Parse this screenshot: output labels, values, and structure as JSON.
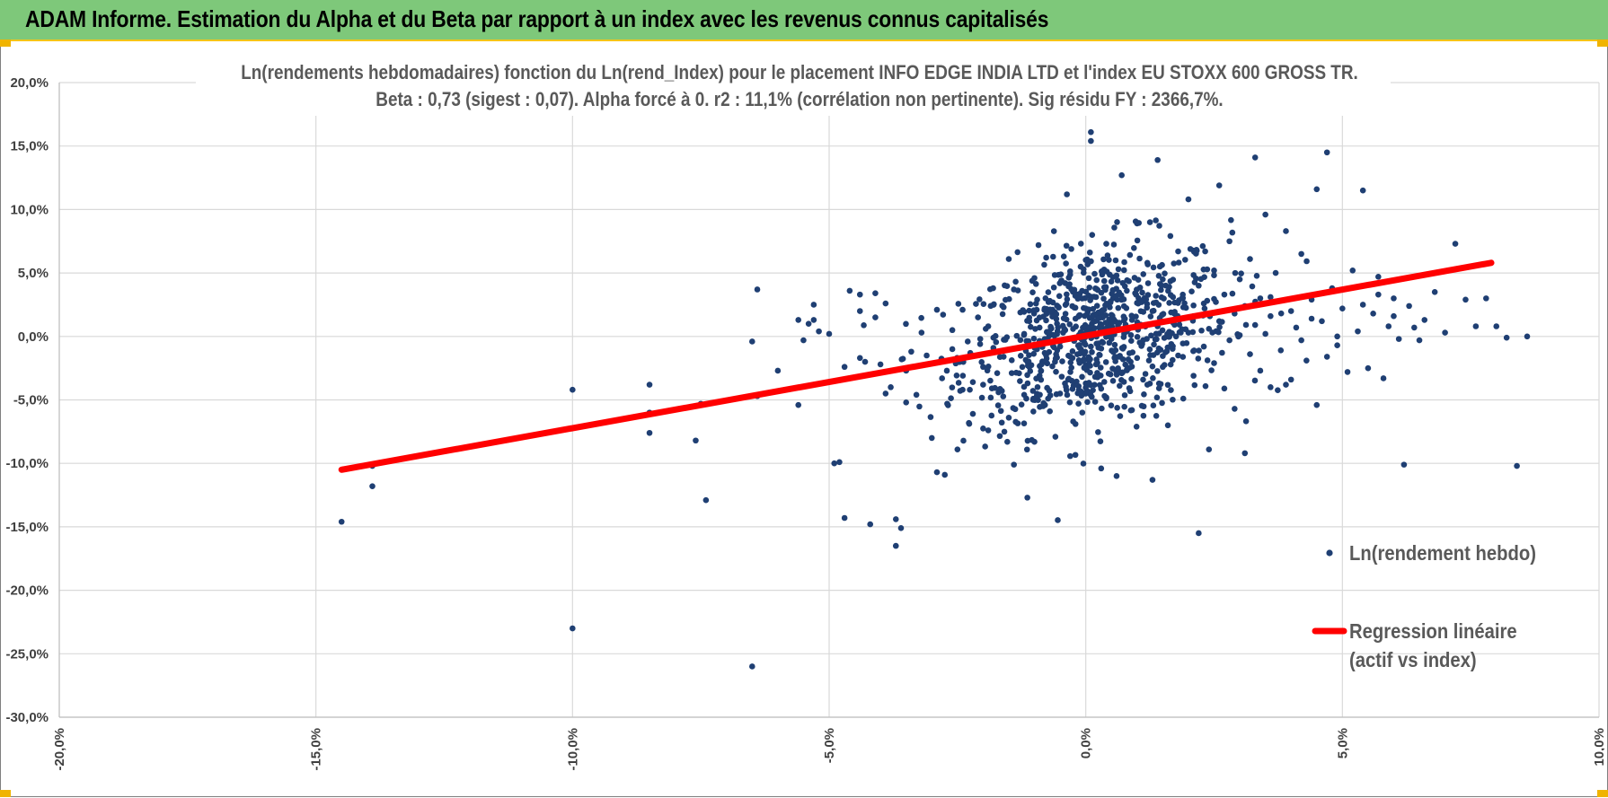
{
  "header": {
    "title": "ADAM Informe. Estimation du Alpha et du Beta par rapport à un index avec les revenus connus capitalisés"
  },
  "colors": {
    "header_bg": "#7ec87a",
    "accent_yellow": "#f0b400",
    "points": "#1f3f73",
    "regression": "#ff0000"
  },
  "chart_data": {
    "type": "scatter",
    "title_line1": "Ln(rendements hebdomadaires) fonction du Ln(rend_Index) pour le placement INFO EDGE INDIA LTD et l'index EU STOXX 600 GROSS TR.",
    "title_line2": "Beta : 0,73 (sigest : 0,07). Alpha forcé à 0. r2 : 11,1% (corrélation non pertinente). Sig résidu FY : 2366,7%.",
    "xlim": [
      -0.2,
      0.1
    ],
    "ylim": [
      -0.3,
      0.2
    ],
    "x_ticks": [
      -0.2,
      -0.15,
      -0.1,
      -0.05,
      0.0,
      0.05,
      0.1
    ],
    "y_ticks": [
      0.2,
      0.15,
      0.1,
      0.05,
      0.0,
      -0.05,
      -0.1,
      -0.15,
      -0.2,
      -0.25,
      -0.3
    ],
    "x_tick_labels": [
      "-20,0%",
      "-15,0%",
      "-10,0%",
      "-5,0%",
      "0,0%",
      "5,0%",
      "10,0%"
    ],
    "y_tick_labels": [
      "20,0%",
      "15,0%",
      "10,0%",
      "5,0%",
      "0,0%",
      "-5,0%",
      "-10,0%",
      "-15,0%",
      "-20,0%",
      "-25,0%",
      "-30,0%"
    ],
    "grid": "on",
    "legend_position": "bottom-right",
    "series": [
      {
        "name": "Ln(rendement hebdo)",
        "kind": "scatter",
        "points": [
          [
            -0.145,
            -0.146
          ],
          [
            -0.139,
            -0.118
          ],
          [
            -0.139,
            -0.102
          ],
          [
            -0.1,
            -0.042
          ],
          [
            -0.1,
            -0.23
          ],
          [
            -0.085,
            -0.038
          ],
          [
            -0.085,
            -0.076
          ],
          [
            -0.085,
            -0.06
          ],
          [
            -0.076,
            -0.082
          ],
          [
            -0.075,
            -0.053
          ],
          [
            -0.074,
            -0.129
          ],
          [
            -0.065,
            -0.004
          ],
          [
            -0.065,
            -0.26
          ],
          [
            -0.064,
            0.037
          ],
          [
            -0.064,
            -0.047
          ],
          [
            -0.06,
            -0.027
          ],
          [
            -0.056,
            -0.054
          ],
          [
            -0.056,
            0.013
          ],
          [
            -0.055,
            -0.003
          ],
          [
            -0.054,
            0.01
          ],
          [
            -0.053,
            0.025
          ],
          [
            -0.053,
            0.013
          ],
          [
            -0.052,
            0.004
          ],
          [
            -0.05,
            0.002
          ],
          [
            -0.049,
            -0.1
          ],
          [
            -0.048,
            -0.099
          ],
          [
            -0.047,
            -0.024
          ],
          [
            -0.047,
            -0.143
          ],
          [
            -0.046,
            0.036
          ],
          [
            -0.044,
            0.033
          ],
          [
            -0.044,
            0.02
          ],
          [
            -0.044,
            -0.017
          ],
          [
            -0.043,
            -0.02
          ],
          [
            -0.042,
            -0.148
          ],
          [
            -0.041,
            0.034
          ],
          [
            -0.041,
            0.015
          ],
          [
            -0.04,
            -0.022
          ],
          [
            -0.039,
            0.026
          ],
          [
            -0.039,
            -0.045
          ],
          [
            -0.038,
            -0.04
          ],
          [
            -0.037,
            -0.144
          ],
          [
            -0.037,
            -0.165
          ],
          [
            -0.036,
            -0.151
          ],
          [
            -0.035,
            -0.027
          ],
          [
            -0.035,
            -0.052
          ],
          [
            -0.034,
            -0.012
          ],
          [
            -0.033,
            -0.046
          ],
          [
            -0.032,
            0.003
          ],
          [
            -0.031,
            -0.015
          ],
          [
            -0.03,
            -0.08
          ],
          [
            -0.029,
            -0.107
          ],
          [
            -0.029,
            0.021
          ],
          [
            -0.028,
            -0.033
          ],
          [
            -0.028,
            -0.019
          ],
          [
            -0.027,
            -0.053
          ],
          [
            -0.026,
            0.005
          ],
          [
            -0.026,
            -0.01
          ],
          [
            -0.025,
            -0.089
          ],
          [
            -0.024,
            -0.042
          ],
          [
            -0.024,
            0.021
          ],
          [
            -0.023,
            -0.004
          ],
          [
            -0.022,
            -0.036
          ],
          [
            -0.022,
            -0.061
          ],
          [
            -0.021,
            0.015
          ],
          [
            -0.02,
            -0.024
          ],
          [
            -0.02,
            -0.038
          ],
          [
            -0.019,
            -0.074
          ],
          [
            -0.019,
            0.008
          ],
          [
            -0.018,
            -0.009
          ],
          [
            -0.018,
            -0.001
          ],
          [
            -0.017,
            -0.044
          ],
          [
            -0.016,
            0.023
          ],
          [
            -0.016,
            -0.016
          ],
          [
            -0.015,
            -0.064
          ],
          [
            -0.015,
            0.061
          ],
          [
            -0.014,
            0.037
          ],
          [
            -0.014,
            -0.101
          ],
          [
            -0.013,
            -0.029
          ],
          [
            -0.013,
            -0.009
          ],
          [
            -0.012,
            0.002
          ],
          [
            -0.012,
            -0.046
          ],
          [
            -0.011,
            0.012
          ],
          [
            -0.011,
            -0.024
          ],
          [
            -0.01,
            -0.083
          ],
          [
            -0.01,
            0.046
          ],
          [
            -0.009,
            -0.031
          ],
          [
            -0.009,
            0.007
          ],
          [
            -0.008,
            -0.013
          ],
          [
            -0.008,
            -0.002
          ],
          [
            -0.007,
            0.028
          ],
          [
            -0.007,
            -0.059
          ],
          [
            -0.006,
            -0.02
          ],
          [
            -0.006,
            0.019
          ],
          [
            -0.005,
            -0.008
          ],
          [
            -0.005,
            -0.045
          ],
          [
            -0.004,
            0.042
          ],
          [
            -0.004,
            0.005
          ],
          [
            -0.003,
            -0.028
          ],
          [
            -0.003,
            -0.016
          ],
          [
            -0.002,
            0.014
          ],
          [
            -0.002,
            -0.069
          ],
          [
            -0.001,
            0.001
          ],
          [
            -0.001,
            0.055
          ],
          [
            0.0,
            -0.037
          ],
          [
            0.0,
            0.022
          ],
          [
            0.001,
            -0.008
          ],
          [
            0.001,
            0.161
          ],
          [
            0.001,
            0.154
          ],
          [
            0.002,
            0.031
          ],
          [
            0.002,
            -0.022
          ],
          [
            0.003,
            0.009
          ],
          [
            0.003,
            -0.104
          ],
          [
            0.004,
            0.073
          ],
          [
            0.004,
            -0.048
          ],
          [
            0.005,
            0.017
          ],
          [
            0.005,
            -0.002
          ],
          [
            0.006,
            -0.11
          ],
          [
            0.006,
            0.048
          ],
          [
            0.007,
            -0.029
          ],
          [
            0.007,
            0.127
          ],
          [
            0.008,
            0.004
          ],
          [
            0.008,
            0.036
          ],
          [
            0.009,
            -0.058
          ],
          [
            0.009,
            0.013
          ],
          [
            0.01,
            -0.017
          ],
          [
            0.01,
            0.089
          ],
          [
            0.011,
            0.028
          ],
          [
            0.011,
            -0.006
          ],
          [
            0.012,
            0.058
          ],
          [
            0.012,
            -0.038
          ],
          [
            0.013,
            0.02
          ],
          [
            0.013,
            -0.113
          ],
          [
            0.014,
            0.008
          ],
          [
            0.014,
            0.139
          ],
          [
            0.015,
            -0.024
          ],
          [
            0.015,
            0.045
          ],
          [
            0.016,
            0.001
          ],
          [
            0.016,
            -0.07
          ],
          [
            0.017,
            0.031
          ],
          [
            0.017,
            0.011
          ],
          [
            0.018,
            -0.015
          ],
          [
            0.018,
            0.067
          ],
          [
            0.019,
            0.023
          ],
          [
            0.019,
            -0.049
          ],
          [
            0.02,
            0.003
          ],
          [
            0.02,
            0.108
          ],
          [
            0.021,
            -0.031
          ],
          [
            0.021,
            0.016
          ],
          [
            0.022,
            -0.155
          ],
          [
            0.022,
            0.04
          ],
          [
            0.023,
            -0.008
          ],
          [
            0.023,
            0.026
          ],
          [
            0.024,
            -0.089
          ],
          [
            0.024,
            0.006
          ],
          [
            0.025,
            0.052
          ],
          [
            0.025,
            -0.021
          ],
          [
            0.026,
            0.119
          ],
          [
            0.026,
            0.012
          ],
          [
            0.027,
            -0.041
          ],
          [
            0.027,
            0.033
          ],
          [
            0.028,
            -0.003
          ],
          [
            0.028,
            0.075
          ],
          [
            0.029,
            0.018
          ],
          [
            0.029,
            -0.057
          ],
          [
            0.03,
            0.045
          ],
          [
            0.03,
            0.001
          ],
          [
            0.031,
            -0.092
          ],
          [
            0.031,
            0.024
          ],
          [
            0.032,
            -0.014
          ],
          [
            0.032,
            0.061
          ],
          [
            0.033,
            0.009
          ],
          [
            0.033,
            0.141
          ],
          [
            0.034,
            -0.027
          ],
          [
            0.034,
            0.03
          ],
          [
            0.035,
            0.002
          ],
          [
            0.035,
            0.096
          ],
          [
            0.036,
            -0.04
          ],
          [
            0.036,
            0.016
          ],
          [
            0.037,
            0.05
          ],
          [
            0.038,
            -0.011
          ],
          [
            0.039,
            0.083
          ],
          [
            0.04,
            0.02
          ],
          [
            0.04,
            -0.034
          ],
          [
            0.041,
            0.007
          ],
          [
            0.042,
            0.065
          ],
          [
            0.043,
            -0.019
          ],
          [
            0.044,
            0.029
          ],
          [
            0.045,
            -0.054
          ],
          [
            0.046,
            0.012
          ],
          [
            0.047,
            0.145
          ],
          [
            0.048,
            0.038
          ],
          [
            0.049,
            -0.007
          ],
          [
            0.05,
            0.022
          ],
          [
            0.051,
            -0.028
          ],
          [
            0.052,
            0.052
          ],
          [
            0.053,
            0.004
          ],
          [
            0.054,
            0.115
          ],
          [
            0.055,
            -0.025
          ],
          [
            0.056,
            0.018
          ],
          [
            0.057,
            0.047
          ],
          [
            0.058,
            -0.033
          ],
          [
            0.059,
            0.008
          ],
          [
            0.06,
            0.03
          ],
          [
            0.061,
            -0.002
          ],
          [
            0.062,
            -0.101
          ],
          [
            0.063,
            0.024
          ],
          [
            0.064,
            0.007
          ],
          [
            0.065,
            -0.003
          ],
          [
            0.066,
            0.013
          ],
          [
            0.068,
            0.035
          ],
          [
            0.07,
            0.003
          ],
          [
            0.072,
            0.073
          ],
          [
            0.074,
            0.029
          ],
          [
            0.076,
            0.008
          ],
          [
            0.078,
            0.03
          ],
          [
            0.08,
            0.008
          ],
          [
            0.082,
            -0.001
          ],
          [
            0.084,
            -0.102
          ],
          [
            0.086,
            0.0
          ],
          [
            0.054,
            0.025
          ],
          [
            0.057,
            0.033
          ],
          [
            0.06,
            0.016
          ],
          [
            0.044,
            0.014
          ],
          [
            0.049,
            0.0
          ],
          [
            0.047,
            -0.016
          ],
          [
            0.042,
            -0.003
          ],
          [
            0.045,
            0.116
          ],
          [
            0.036,
            0.031
          ],
          [
            0.039,
            -0.038
          ]
        ]
      },
      {
        "name": "Regression linéaire (actif vs index)",
        "name_line1": "Regression linéaire",
        "name_line2": "(actif vs index)",
        "kind": "line",
        "x": [
          -0.145,
          0.079
        ],
        "y": [
          -0.105,
          0.058
        ]
      }
    ]
  }
}
